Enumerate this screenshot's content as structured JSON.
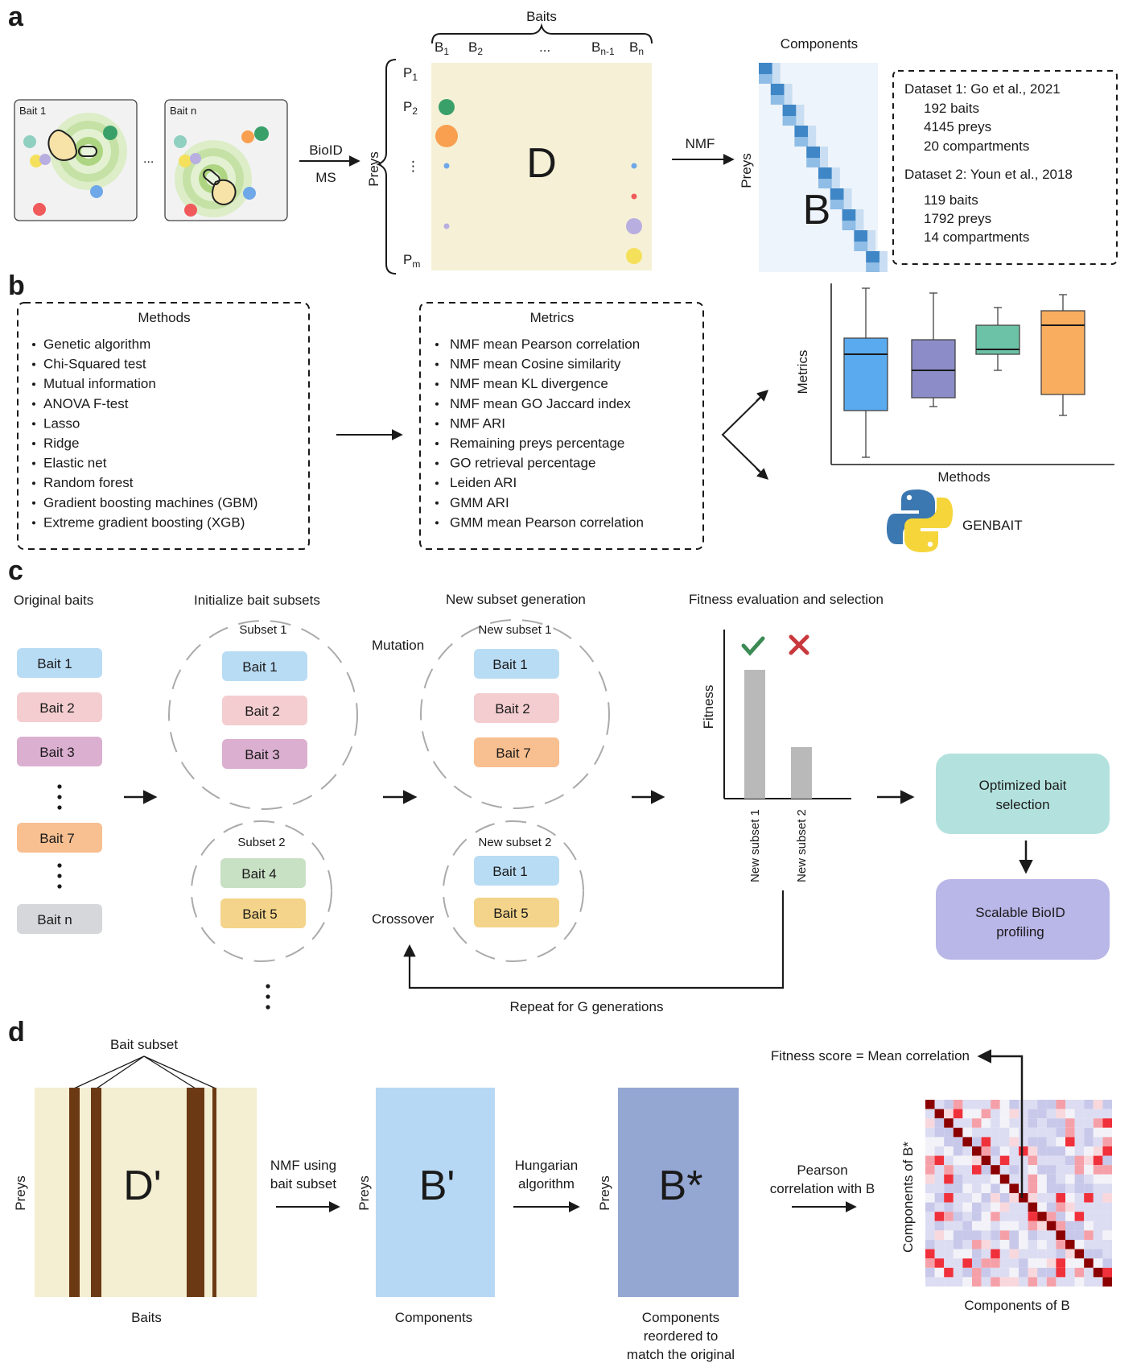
{
  "panels": {
    "a": {
      "label": "a",
      "bait1_label": "Bait 1",
      "baitn_label": "Bait n",
      "ellipsis": "...",
      "arrow1_top": "BioID",
      "arrow1_bottom": "MS",
      "baits_header": "Baits",
      "bait_cols": [
        "B",
        "B",
        "...",
        "B",
        "B"
      ],
      "bait_col_subs": [
        "1",
        "2",
        "",
        "n-1",
        "n"
      ],
      "preys_label": "Preys",
      "prey_rows": [
        "P",
        "P",
        "⋮",
        "P"
      ],
      "prey_row_subs": [
        "1",
        "2",
        "",
        "m"
      ],
      "matrix_label": "D",
      "nmf_label": "NMF",
      "components_label": "Components",
      "preys_label_b": "Preys",
      "matrix_b_label": "B",
      "datasets": [
        {
          "title": "Dataset 1: Go et al., 2021",
          "lines": [
            "192 baits",
            "4145 preys",
            "20 compartments"
          ]
        },
        {
          "title": "Dataset 2: Youn et al., 2018",
          "lines": [
            "119 baits",
            "1792 preys",
            "14 compartments"
          ]
        }
      ]
    },
    "b": {
      "label": "b",
      "methods_title": "Methods",
      "methods": [
        "Genetic algorithm",
        "Chi-Squared test",
        "Mutual information",
        "ANOVA F-test",
        "Lasso",
        "Ridge",
        "Elastic net",
        "Random forest",
        "Gradient boosting machines (GBM)",
        "Extreme gradient boosting (XGB)"
      ],
      "metrics_title": "Metrics",
      "metrics": [
        "NMF mean Pearson correlation",
        "NMF mean Cosine similarity",
        "NMF mean KL divergence",
        "NMF mean GO Jaccard index",
        "NMF ARI",
        "Remaining preys percentage",
        "GO retrieval percentage",
        "Leiden ARI",
        "GMM ARI",
        "GMM mean Pearson correlation"
      ],
      "boxplot_ylabel": "Metrics",
      "boxplot_xlabel": "Methods",
      "boxplot_colors": [
        "#5aaaf0",
        "#8c8cc8",
        "#6cc2a6",
        "#f9ad5e"
      ],
      "software_name": "GENBAIT"
    },
    "c": {
      "label": "c",
      "col_titles": [
        "Original baits",
        "Initialize bait subsets",
        "New subset generation",
        "Fitness evaluation and selection"
      ],
      "original_baits": [
        {
          "label": "Bait 1",
          "color": "#b9dcf5"
        },
        {
          "label": "Bait 2",
          "color": "#f4cdd0"
        },
        {
          "label": "Bait 3",
          "color": "#dbafd0"
        },
        {
          "label": "Bait 7",
          "color": "#f8bf90"
        },
        {
          "label": "Bait n",
          "color": "#d5d7da"
        }
      ],
      "subset1_title": "Subset 1",
      "subset1": [
        {
          "label": "Bait 1",
          "color": "#b9dcf5"
        },
        {
          "label": "Bait 2",
          "color": "#f4cdd0"
        },
        {
          "label": "Bait 3",
          "color": "#dbafd0"
        }
      ],
      "subset2_title": "Subset 2",
      "subset2": [
        {
          "label": "Bait 4",
          "color": "#c8e0c4"
        },
        {
          "label": "Bait 5",
          "color": "#f4d48a"
        }
      ],
      "mutation_label": "Mutation",
      "crossover_label": "Crossover",
      "new_subset1_title": "New subset 1",
      "new_subset1": [
        {
          "label": "Bait 1",
          "color": "#b9dcf5"
        },
        {
          "label": "Bait 2",
          "color": "#f4cdd0"
        },
        {
          "label": "Bait 7",
          "color": "#f8bf90"
        }
      ],
      "new_subset2_title": "New subset 2",
      "new_subset2": [
        {
          "label": "Bait 1",
          "color": "#b9dcf5"
        },
        {
          "label": "Bait 5",
          "color": "#f4d48a"
        }
      ],
      "fitness_ylabel": "Fitness",
      "fitness_bars": [
        {
          "name": "New subset 1",
          "value": 1.0
        },
        {
          "name": "New subset 2",
          "value": 0.4
        }
      ],
      "optimized_label": [
        "Optimized bait",
        "selection"
      ],
      "scalable_label": [
        "Scalable BioID",
        "profiling"
      ],
      "repeat_label": "Repeat for G generations"
    },
    "d": {
      "label": "d",
      "bait_subset_label": "Bait subset",
      "preys_label": "Preys",
      "matrix_d_label": "D'",
      "baits_label": "Baits",
      "nmf_label": [
        "NMF using",
        "bait subset"
      ],
      "matrix_b_label": "B'",
      "components_label": "Components",
      "hungarian_label": [
        "Hungarian",
        "algorithm"
      ],
      "matrix_bstar_label": "B*",
      "reordered_label": [
        "Components",
        "reordered to",
        "match the original"
      ],
      "pearson_label": [
        "Pearson",
        "correlation with B"
      ],
      "fitness_score_label": "Fitness score = Mean correlation",
      "heatmap_ylabel": "Components of B*",
      "heatmap_xlabel": "Components of B"
    }
  }
}
